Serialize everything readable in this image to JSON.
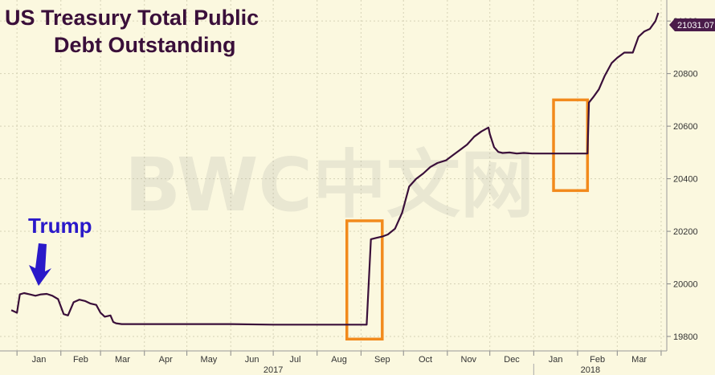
{
  "chart_data": {
    "type": "line",
    "title_line1": "US Treasury Total Public",
    "title_line2": "Debt Outstanding",
    "annotation": "Trump",
    "watermark": "BWC中文网",
    "last_value_label": "21031.07",
    "year_labels": [
      "2017",
      "2018"
    ],
    "month_labels": [
      "Jan",
      "Feb",
      "Mar",
      "Apr",
      "May",
      "Jun",
      "Jul",
      "Aug",
      "Sep",
      "Oct",
      "Nov",
      "Dec",
      "Jan",
      "Feb",
      "Mar"
    ],
    "y_ticks": [
      19800,
      20000,
      20200,
      20400,
      20600,
      20800,
      21000
    ],
    "ylim": [
      19745,
      21080
    ],
    "series": [
      {
        "x": [
          "2016-12-28",
          "2017-01-01",
          "2017-01-03",
          "2017-01-06",
          "2017-01-10",
          "2017-01-14",
          "2017-01-18",
          "2017-01-22",
          "2017-01-26",
          "2017-01-30",
          "2017-02-03",
          "2017-02-06",
          "2017-02-10",
          "2017-02-14",
          "2017-02-18",
          "2017-02-22",
          "2017-02-26",
          "2017-03-01",
          "2017-03-04",
          "2017-03-08",
          "2017-03-10",
          "2017-03-12",
          "2017-03-16",
          "2017-04-01",
          "2017-05-01",
          "2017-06-01",
          "2017-07-01",
          "2017-08-01",
          "2017-09-05",
          "2017-09-08",
          "2017-09-12",
          "2017-09-16",
          "2017-09-20",
          "2017-09-25",
          "2017-09-30",
          "2017-10-05",
          "2017-10-10",
          "2017-10-15",
          "2017-10-20",
          "2017-10-25",
          "2017-10-31",
          "2017-11-05",
          "2017-11-10",
          "2017-11-15",
          "2017-11-20",
          "2017-11-25",
          "2017-11-30",
          "2017-12-01",
          "2017-12-04",
          "2017-12-07",
          "2017-12-10",
          "2017-12-15",
          "2017-12-20",
          "2017-12-25",
          "2017-12-31",
          "2018-01-10",
          "2018-01-20",
          "2018-02-01",
          "2018-02-08",
          "2018-02-09",
          "2018-02-12",
          "2018-02-16",
          "2018-02-20",
          "2018-02-25",
          "2018-03-01",
          "2018-03-06",
          "2018-03-12",
          "2018-03-16",
          "2018-03-20",
          "2018-03-24",
          "2018-03-28",
          "2018-03-30"
        ],
        "y": [
          19900,
          19890,
          19960,
          19965,
          19960,
          19955,
          19960,
          19962,
          19955,
          19942,
          19885,
          19880,
          19930,
          19940,
          19935,
          19925,
          19920,
          19890,
          19875,
          19880,
          19855,
          19850,
          19847,
          19847,
          19847,
          19847,
          19845,
          19845,
          19845,
          20170,
          20175,
          20180,
          20188,
          20210,
          20270,
          20370,
          20400,
          20420,
          20445,
          20460,
          20470,
          20490,
          20510,
          20530,
          20560,
          20580,
          20595,
          20570,
          20520,
          20502,
          20498,
          20500,
          20496,
          20498,
          20496,
          20496,
          20496,
          20496,
          20496,
          20690,
          20710,
          20740,
          20790,
          20840,
          20860,
          20880,
          20880,
          20940,
          20960,
          20970,
          21000,
          21031
        ]
      }
    ],
    "highlight_boxes": [
      {
        "x_start": "2017-08-22",
        "x_end": "2017-09-16",
        "y_low": 19790,
        "y_high": 20240
      },
      {
        "x_start": "2018-01-15",
        "x_end": "2018-02-08",
        "y_low": 20355,
        "y_high": 20700
      }
    ],
    "colors": {
      "background": "#fbf8df",
      "line": "#3a0f3a",
      "highlight": "#f28a1c",
      "annotation": "#2a19c9",
      "grid": "#d6d2b6",
      "last_value_bg": "#4a1c4a"
    },
    "grid": true,
    "y_axis_side": "right"
  }
}
